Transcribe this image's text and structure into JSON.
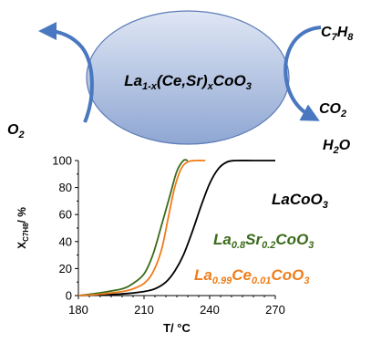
{
  "schematic": {
    "catalyst": {
      "main": "La",
      "sub1": "1-x",
      "mid": "(Ce,Sr)",
      "sub2": "x",
      "tail": "CoO",
      "sub3": "3"
    },
    "reactant_left": {
      "main": "O",
      "sub": "2"
    },
    "reactant_right": {
      "c": "C",
      "c_sub": "7",
      "h": "H",
      "h_sub": "8"
    },
    "product_co2": {
      "main": "CO",
      "sub": "2"
    },
    "product_h2o": {
      "h": "H",
      "h_sub": "2",
      "o": "O"
    }
  },
  "colors": {
    "ellipse_fill_top": "#dfe6f4",
    "ellipse_fill_bottom": "#8fa7d3",
    "ellipse_stroke": "#5d7cb8",
    "arrow": "#4a78c0",
    "series_lacoo3": "#000000",
    "series_sr": "#3a6b1a",
    "series_ce": "#f07c1a"
  },
  "chart_data": {
    "type": "line",
    "title": "",
    "xlabel": "T/ °C",
    "ylabel": {
      "main": "X",
      "sub": "C7H8",
      "tail": "/ %"
    },
    "xlim": [
      180,
      270
    ],
    "ylim": [
      0,
      100
    ],
    "x_ticks": [
      "180",
      "210",
      "240",
      "270"
    ],
    "y_ticks": [
      "0",
      "20",
      "40",
      "60",
      "80",
      "100"
    ],
    "grid": false,
    "series": [
      {
        "name": "LaCoO3",
        "color": "#000000",
        "x": [
          180,
          190,
          200,
          210,
          215,
          220,
          224,
          228,
          232,
          236,
          240,
          244,
          248,
          252,
          260,
          270
        ],
        "y": [
          0,
          0.5,
          1.2,
          3,
          5,
          10,
          18,
          30,
          47,
          66,
          83,
          94,
          99,
          100,
          100,
          100
        ]
      },
      {
        "name": "La0.8Sr0.2CoO3",
        "color": "#3a6b1a",
        "x": [
          180,
          190,
          200,
          205,
          210,
          214,
          218,
          222,
          225,
          228,
          230
        ],
        "y": [
          0,
          2,
          5,
          9,
          16,
          30,
          52,
          75,
          92,
          100,
          100
        ]
      },
      {
        "name": "La0.99Ce0.01CoO3",
        "color": "#f07c1a",
        "x": [
          180,
          190,
          200,
          205,
          210,
          214,
          218,
          221,
          224,
          227,
          230,
          234,
          238
        ],
        "y": [
          0,
          1,
          3,
          5,
          9,
          17,
          34,
          57,
          80,
          94,
          99,
          100,
          100
        ]
      }
    ],
    "legend": [
      {
        "main": "LaCoO",
        "sub": "3"
      },
      {
        "a": "La",
        "a_sub": "0.8",
        "b": "Sr",
        "b_sub": "0.2",
        "c": "CoO",
        "c_sub": "3"
      },
      {
        "a": "La",
        "a_sub": "0.99",
        "b": "Ce",
        "b_sub": "0.01",
        "c": "CoO",
        "c_sub": "3"
      }
    ]
  }
}
